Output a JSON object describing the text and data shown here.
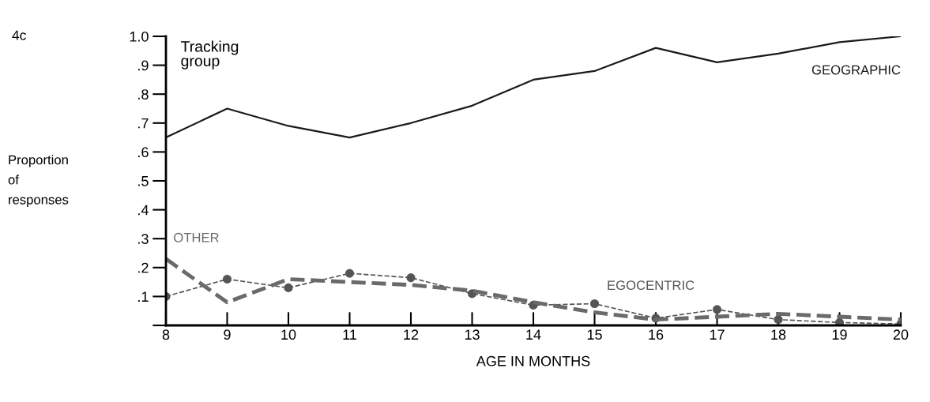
{
  "chart_data": {
    "type": "line",
    "xlabel": "AGE IN MONTHS",
    "ylabel": "Proportion\nof\nresponses",
    "x": [
      8,
      9,
      10,
      11,
      12,
      13,
      14,
      15,
      16,
      17,
      18,
      19,
      20
    ],
    "series": [
      {
        "name": "GEOGRAPHIC",
        "color": "#1a1a1a",
        "line_style": "solid",
        "marker": "none",
        "values": [
          0.65,
          0.75,
          0.69,
          0.65,
          0.7,
          0.76,
          0.85,
          0.88,
          0.96,
          0.91,
          0.94,
          0.98,
          1.0
        ]
      },
      {
        "name": "EGOCENTRIC",
        "color": "#555555",
        "line_style": "dashed",
        "marker": "circle",
        "values": [
          0.1,
          0.16,
          0.13,
          0.18,
          0.165,
          0.11,
          0.07,
          0.075,
          0.025,
          0.055,
          0.02,
          0.01,
          0.005
        ]
      },
      {
        "name": "OTHER",
        "color": "#6a6a6a",
        "line_style": "dashed",
        "marker": "none",
        "values": [
          0.23,
          0.08,
          0.16,
          0.15,
          0.14,
          0.12,
          0.08,
          0.045,
          0.02,
          0.03,
          0.04,
          0.03,
          0.02
        ]
      }
    ],
    "xlim": [
      8,
      20
    ],
    "ylim": [
      0,
      1.0
    ],
    "xticks": [
      8,
      9,
      10,
      11,
      12,
      13,
      14,
      15,
      16,
      17,
      18,
      19,
      20
    ],
    "yticks": [
      {
        "value": 0,
        "label": null
      },
      {
        "value": 0.1,
        "label": ".1"
      },
      {
        "value": 0.2,
        "label": ".2"
      },
      {
        "value": 0.3,
        "label": ".3"
      },
      {
        "value": 0.4,
        "label": ".4"
      },
      {
        "value": 0.5,
        "label": ".5"
      },
      {
        "value": 0.6,
        "label": ".6"
      },
      {
        "value": 0.7,
        "label": ".7"
      },
      {
        "value": 0.8,
        "label": ".8"
      },
      {
        "value": 0.9,
        "label": ".9"
      },
      {
        "value": 1.0,
        "label": "1.0"
      }
    ],
    "grid": false,
    "legend": false,
    "annotations": [
      "4c",
      "Tracking\ngroup"
    ]
  }
}
